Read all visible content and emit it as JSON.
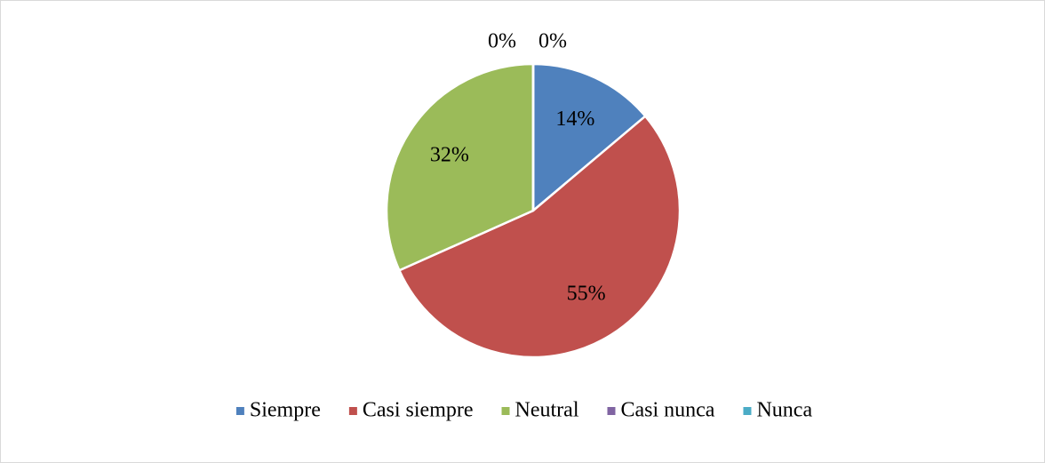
{
  "chart_data": {
    "type": "pie",
    "categories": [
      "Siempre",
      "Casi siempre",
      "Neutral",
      "Casi nunca",
      "Nunca"
    ],
    "values": [
      14,
      55,
      32,
      0,
      0
    ],
    "value_labels": [
      "14%",
      "55%",
      "32%",
      "0%",
      "0%"
    ],
    "colors": [
      "#4f81bd",
      "#c0504d",
      "#9bbb59",
      "#8064a2",
      "#4bacc6"
    ],
    "legend": "bottom"
  }
}
